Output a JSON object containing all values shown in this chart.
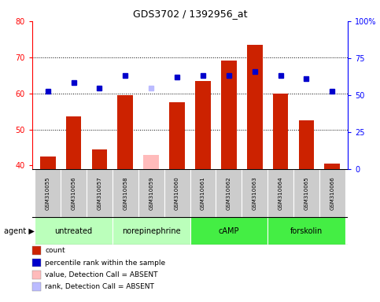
{
  "title": "GDS3702 / 1392956_at",
  "samples": [
    "GSM310055",
    "GSM310056",
    "GSM310057",
    "GSM310058",
    "GSM310059",
    "GSM310060",
    "GSM310061",
    "GSM310062",
    "GSM310063",
    "GSM310064",
    "GSM310065",
    "GSM310066"
  ],
  "bar_values": [
    42.5,
    53.5,
    44.5,
    59.5,
    null,
    57.5,
    63.5,
    69.0,
    73.5,
    60.0,
    52.5,
    40.5
  ],
  "bar_absent_values": [
    null,
    null,
    null,
    null,
    43.0,
    null,
    null,
    null,
    null,
    null,
    null,
    null
  ],
  "rank_values": [
    60.5,
    63.0,
    61.5,
    65.0,
    null,
    64.5,
    65.0,
    65.0,
    66.0,
    65.0,
    64.0,
    60.5
  ],
  "rank_absent_values": [
    null,
    null,
    null,
    null,
    61.5,
    null,
    null,
    null,
    null,
    null,
    null,
    null
  ],
  "groups": [
    {
      "label": "untreated",
      "start": 0,
      "end": 3
    },
    {
      "label": "norepinephrine",
      "start": 3,
      "end": 6
    },
    {
      "label": "cAMP",
      "start": 6,
      "end": 9
    },
    {
      "label": "forskolin",
      "start": 9,
      "end": 12
    }
  ],
  "group_colors": {
    "untreated": "#bbffbb",
    "norepinephrine": "#bbffbb",
    "cAMP": "#44ee44",
    "forskolin": "#44ee44"
  },
  "ylim_left": [
    39,
    80
  ],
  "ylim_right": [
    0,
    100
  ],
  "bar_color": "#cc2200",
  "bar_absent_color": "#ffbbbb",
  "rank_color": "#0000cc",
  "rank_absent_color": "#bbbbff",
  "bg_color": "#ffffff",
  "sample_box_color": "#cccccc",
  "bar_width": 0.6,
  "legend_items": [
    {
      "color": "#cc2200",
      "label": "count"
    },
    {
      "color": "#0000cc",
      "label": "percentile rank within the sample"
    },
    {
      "color": "#ffbbbb",
      "label": "value, Detection Call = ABSENT"
    },
    {
      "color": "#bbbbff",
      "label": "rank, Detection Call = ABSENT"
    }
  ]
}
